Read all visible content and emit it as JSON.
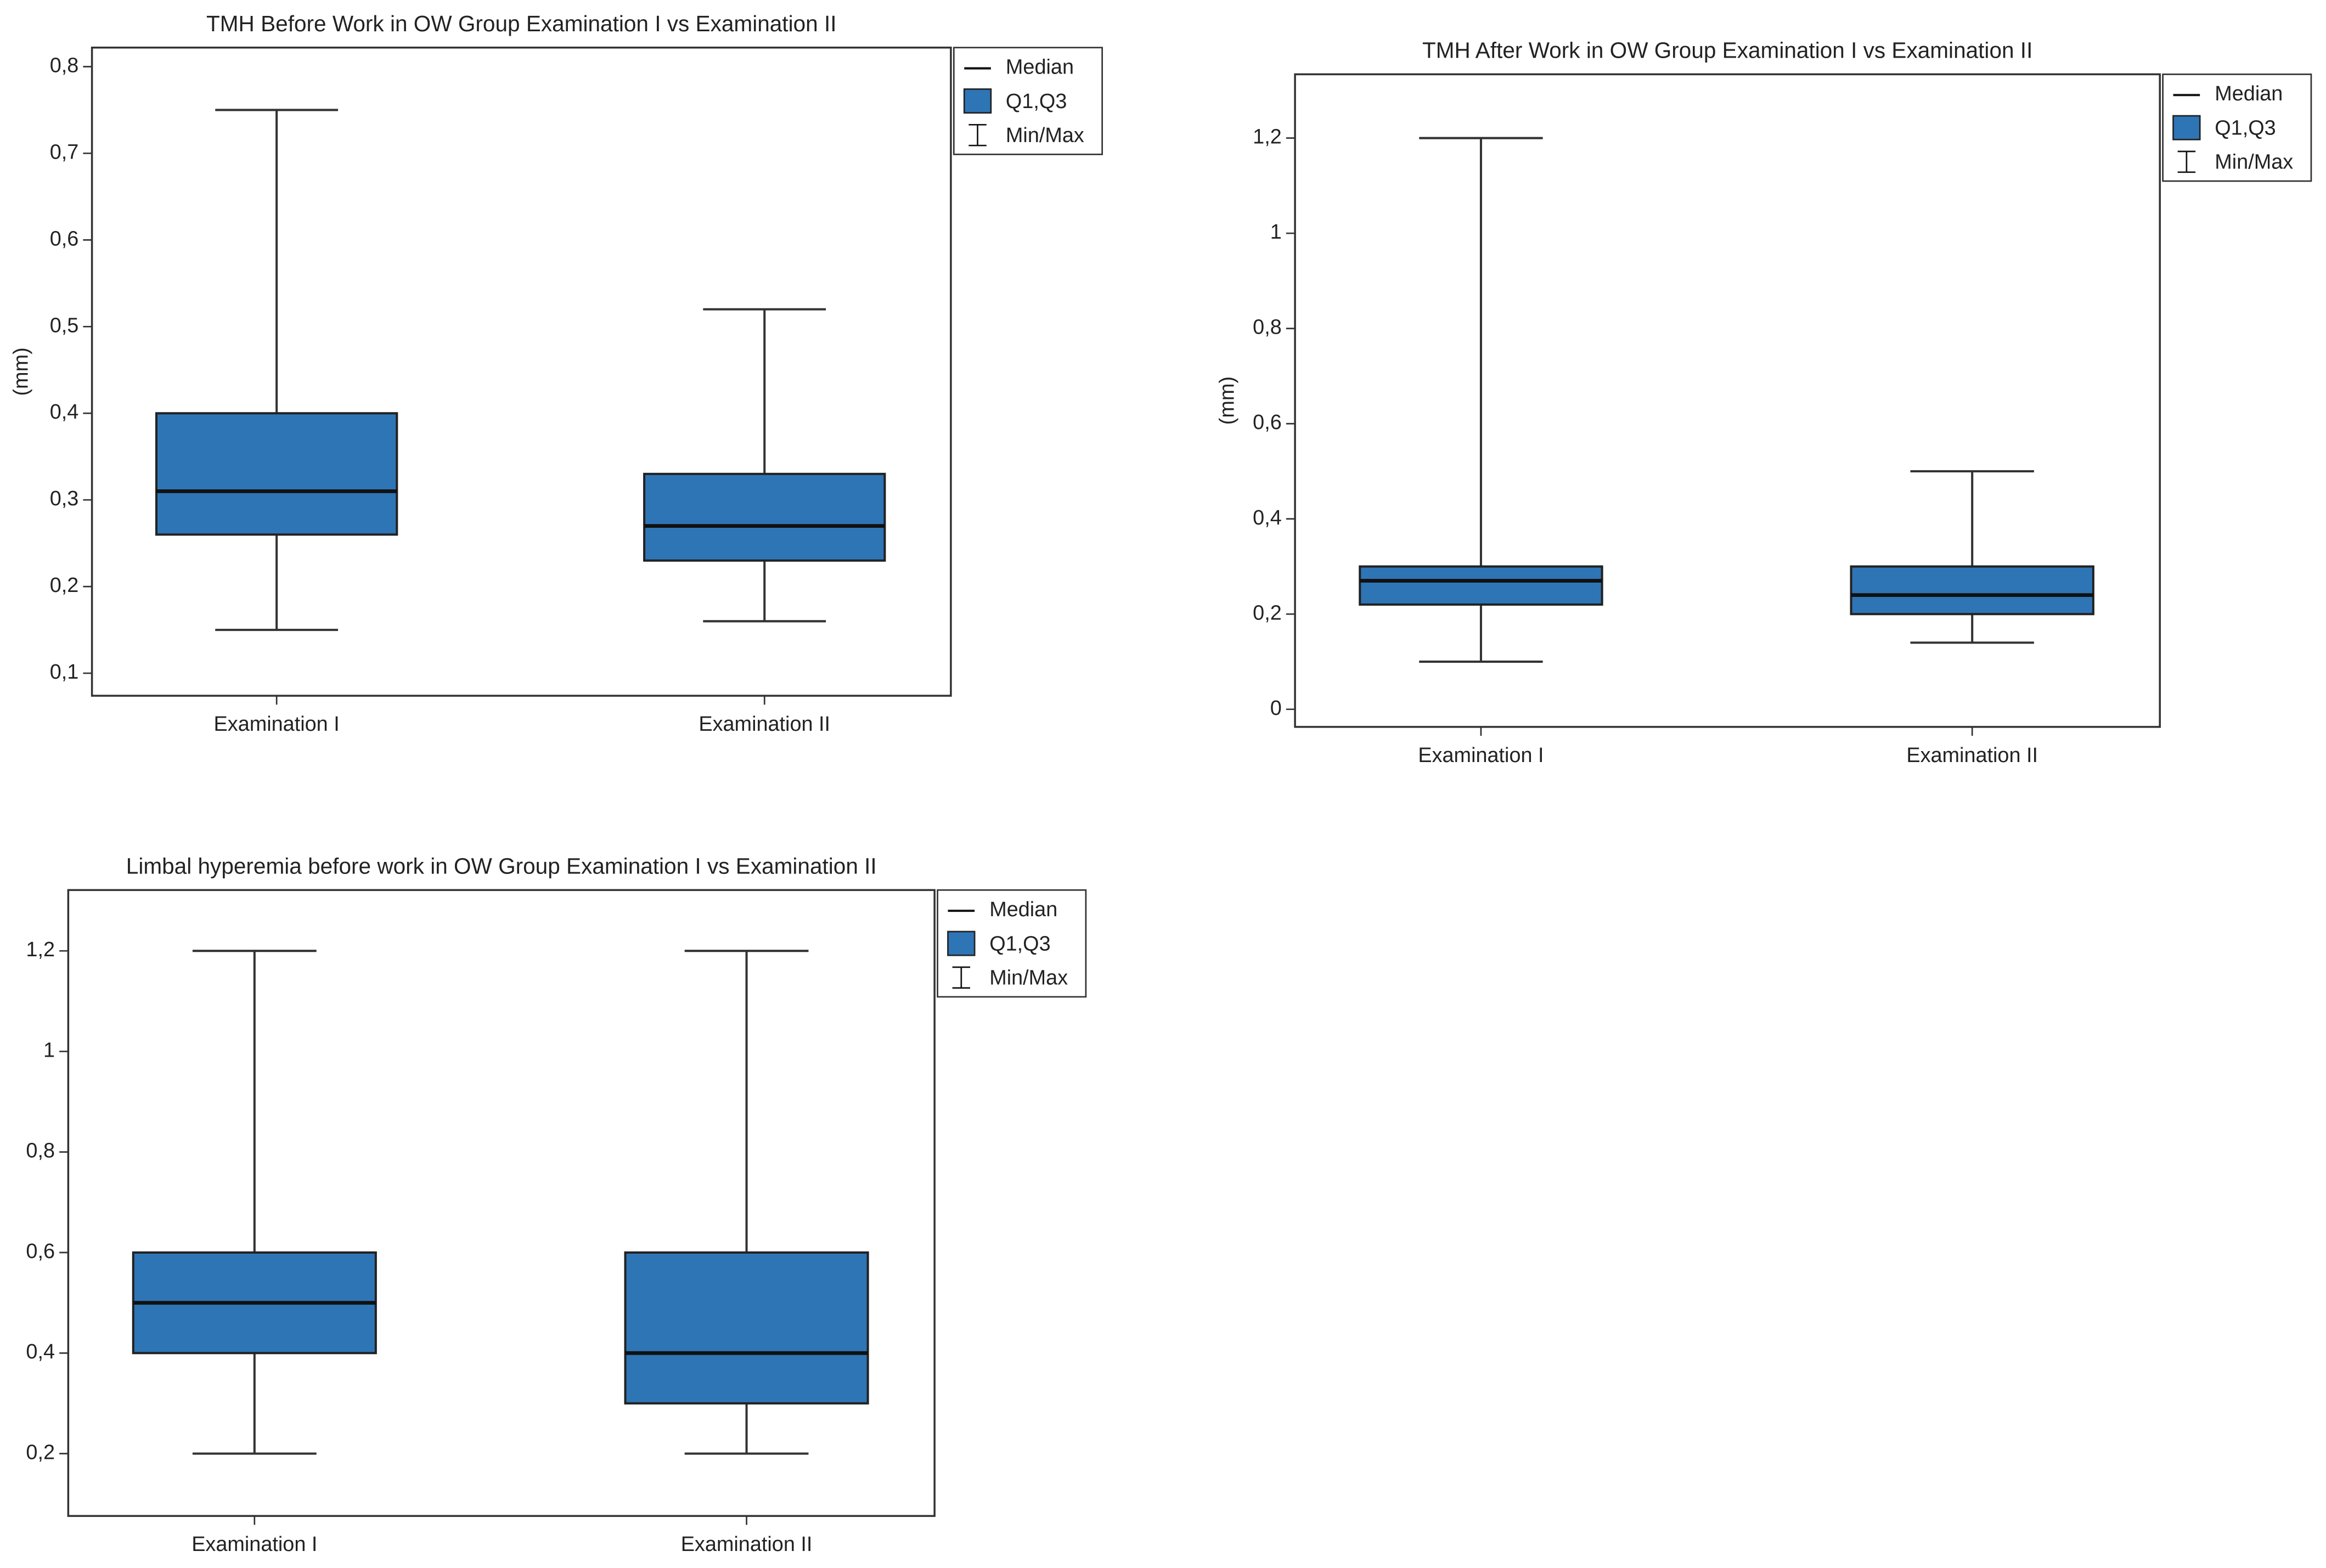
{
  "chart_data": [
    {
      "type": "box",
      "title": "TMH Before Work in OW Group Examination I vs Examination II",
      "y_label": "(mm)",
      "categories": [
        "Examination I",
        "Examination II"
      ],
      "boxes": [
        {
          "min": 0.15,
          "q1": 0.26,
          "median": 0.31,
          "q3": 0.4,
          "max": 0.75
        },
        {
          "min": 0.16,
          "q1": 0.23,
          "median": 0.27,
          "q3": 0.33,
          "max": 0.52
        }
      ],
      "color": "#2e75b6",
      "legend": [
        "Median",
        "Q1,Q3",
        "Min/Max"
      ],
      "ylim": [
        0.074,
        0.822
      ],
      "yticks": [
        {
          "value": 0.1,
          "label": "0,1"
        },
        {
          "value": 0.2,
          "label": "0,2"
        },
        {
          "value": 0.3,
          "label": "0,3"
        },
        {
          "value": 0.4,
          "label": "0,4"
        },
        {
          "value": 0.5,
          "label": "0,5"
        },
        {
          "value": 0.6,
          "label": "0,6"
        },
        {
          "value": 0.7,
          "label": "0,7"
        },
        {
          "value": 0.8,
          "label": "0,8"
        }
      ]
    },
    {
      "type": "box",
      "title": "TMH After Work in OW Group Examination I vs Examination II",
      "y_label": "(mm)",
      "categories": [
        "Examination I",
        "Examination II"
      ],
      "boxes": [
        {
          "min": 0.1,
          "q1": 0.22,
          "median": 0.27,
          "q3": 0.3,
          "max": 1.2
        },
        {
          "min": 0.14,
          "q1": 0.2,
          "median": 0.24,
          "q3": 0.3,
          "max": 0.5
        }
      ],
      "color": "#2e75b6",
      "legend": [
        "Median",
        "Q1,Q3",
        "Min/Max"
      ],
      "ylim": [
        -0.037,
        1.334
      ],
      "yticks": [
        0,
        {
          "value": 0.2,
          "label": "0,2"
        },
        {
          "value": 0.4,
          "label": "0,4"
        },
        {
          "value": 0.6,
          "label": "0,6"
        },
        {
          "value": 0.8,
          "label": "0,8"
        },
        1,
        {
          "value": 1.2,
          "label": "1,2"
        }
      ]
    },
    {
      "type": "box",
      "title": "Limbal hyperemia before work in OW Group Examination I vs Examination II",
      "categories": [
        "Examination I",
        "Examination II"
      ],
      "boxes": [
        {
          "min": 0.2,
          "q1": 0.4,
          "median": 0.5,
          "q3": 0.6,
          "max": 1.2
        },
        {
          "min": 0.2,
          "q1": 0.3,
          "median": 0.4,
          "q3": 0.6,
          "max": 1.2
        }
      ],
      "color": "#2e75b6",
      "legend": [
        "Median",
        "Q1,Q3",
        "Min/Max"
      ],
      "ylim": [
        0.076,
        1.321
      ],
      "yticks": [
        {
          "value": 0.2,
          "label": "0,2"
        },
        {
          "value": 0.4,
          "label": "0,4"
        },
        {
          "value": 0.6,
          "label": "0,6"
        },
        {
          "value": 0.8,
          "label": "0,8"
        },
        1,
        {
          "value": 1.2,
          "label": "1,2"
        }
      ]
    }
  ]
}
